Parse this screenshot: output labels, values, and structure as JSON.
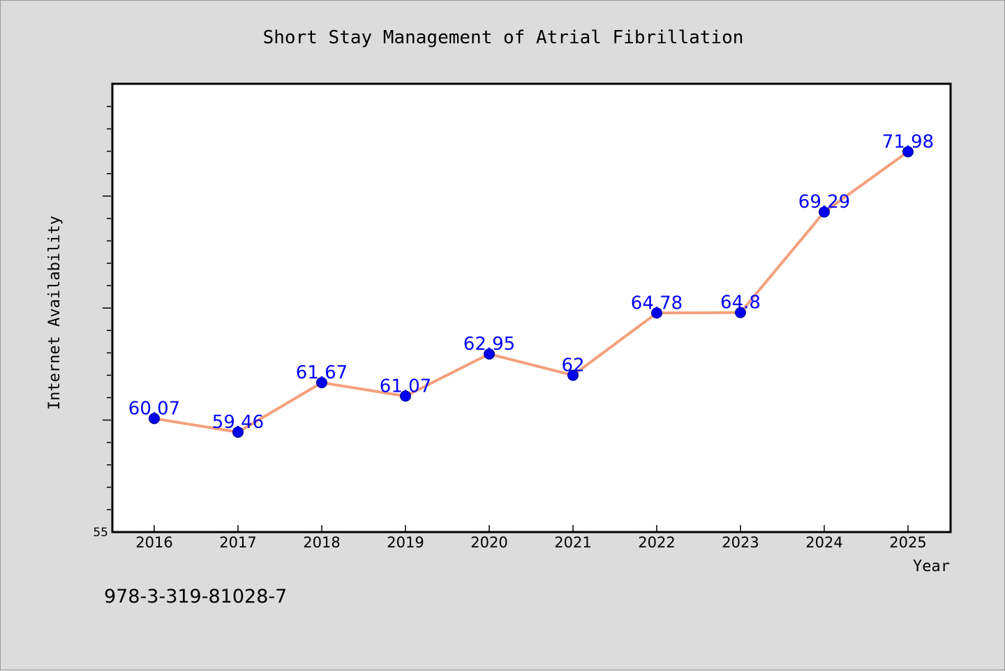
{
  "footer_code": "978-3-319-81028-7",
  "chart_data": {
    "type": "line",
    "title": "Short Stay Management of Atrial Fibrillation",
    "xlabel": "Year",
    "ylabel": "Internet Availability",
    "categories": [
      "2016",
      "2017",
      "2018",
      "2019",
      "2020",
      "2021",
      "2022",
      "2023",
      "2024",
      "2025"
    ],
    "series": [
      {
        "values": [
          60.07,
          59.46,
          61.67,
          61.07,
          62.95,
          62,
          64.78,
          64.8,
          69.29,
          71.98
        ],
        "data_labels": [
          "60.07",
          "59.46",
          "61.67",
          "61.07",
          "62.95",
          "62",
          "64.78",
          "64.8",
          "69.29",
          "71.98"
        ]
      }
    ],
    "ylim": [
      55,
      75
    ],
    "y_tick_labels": [
      "55"
    ],
    "grid": false,
    "legend": "none",
    "colors": {
      "line": "#f4a07c",
      "marker": "#0000ee",
      "marker_edge": "#00008b",
      "data_label": "#0000ff",
      "plot_bg": "#ffffff",
      "figure_bg": "#dcdcdc",
      "axis": "#000000"
    }
  }
}
